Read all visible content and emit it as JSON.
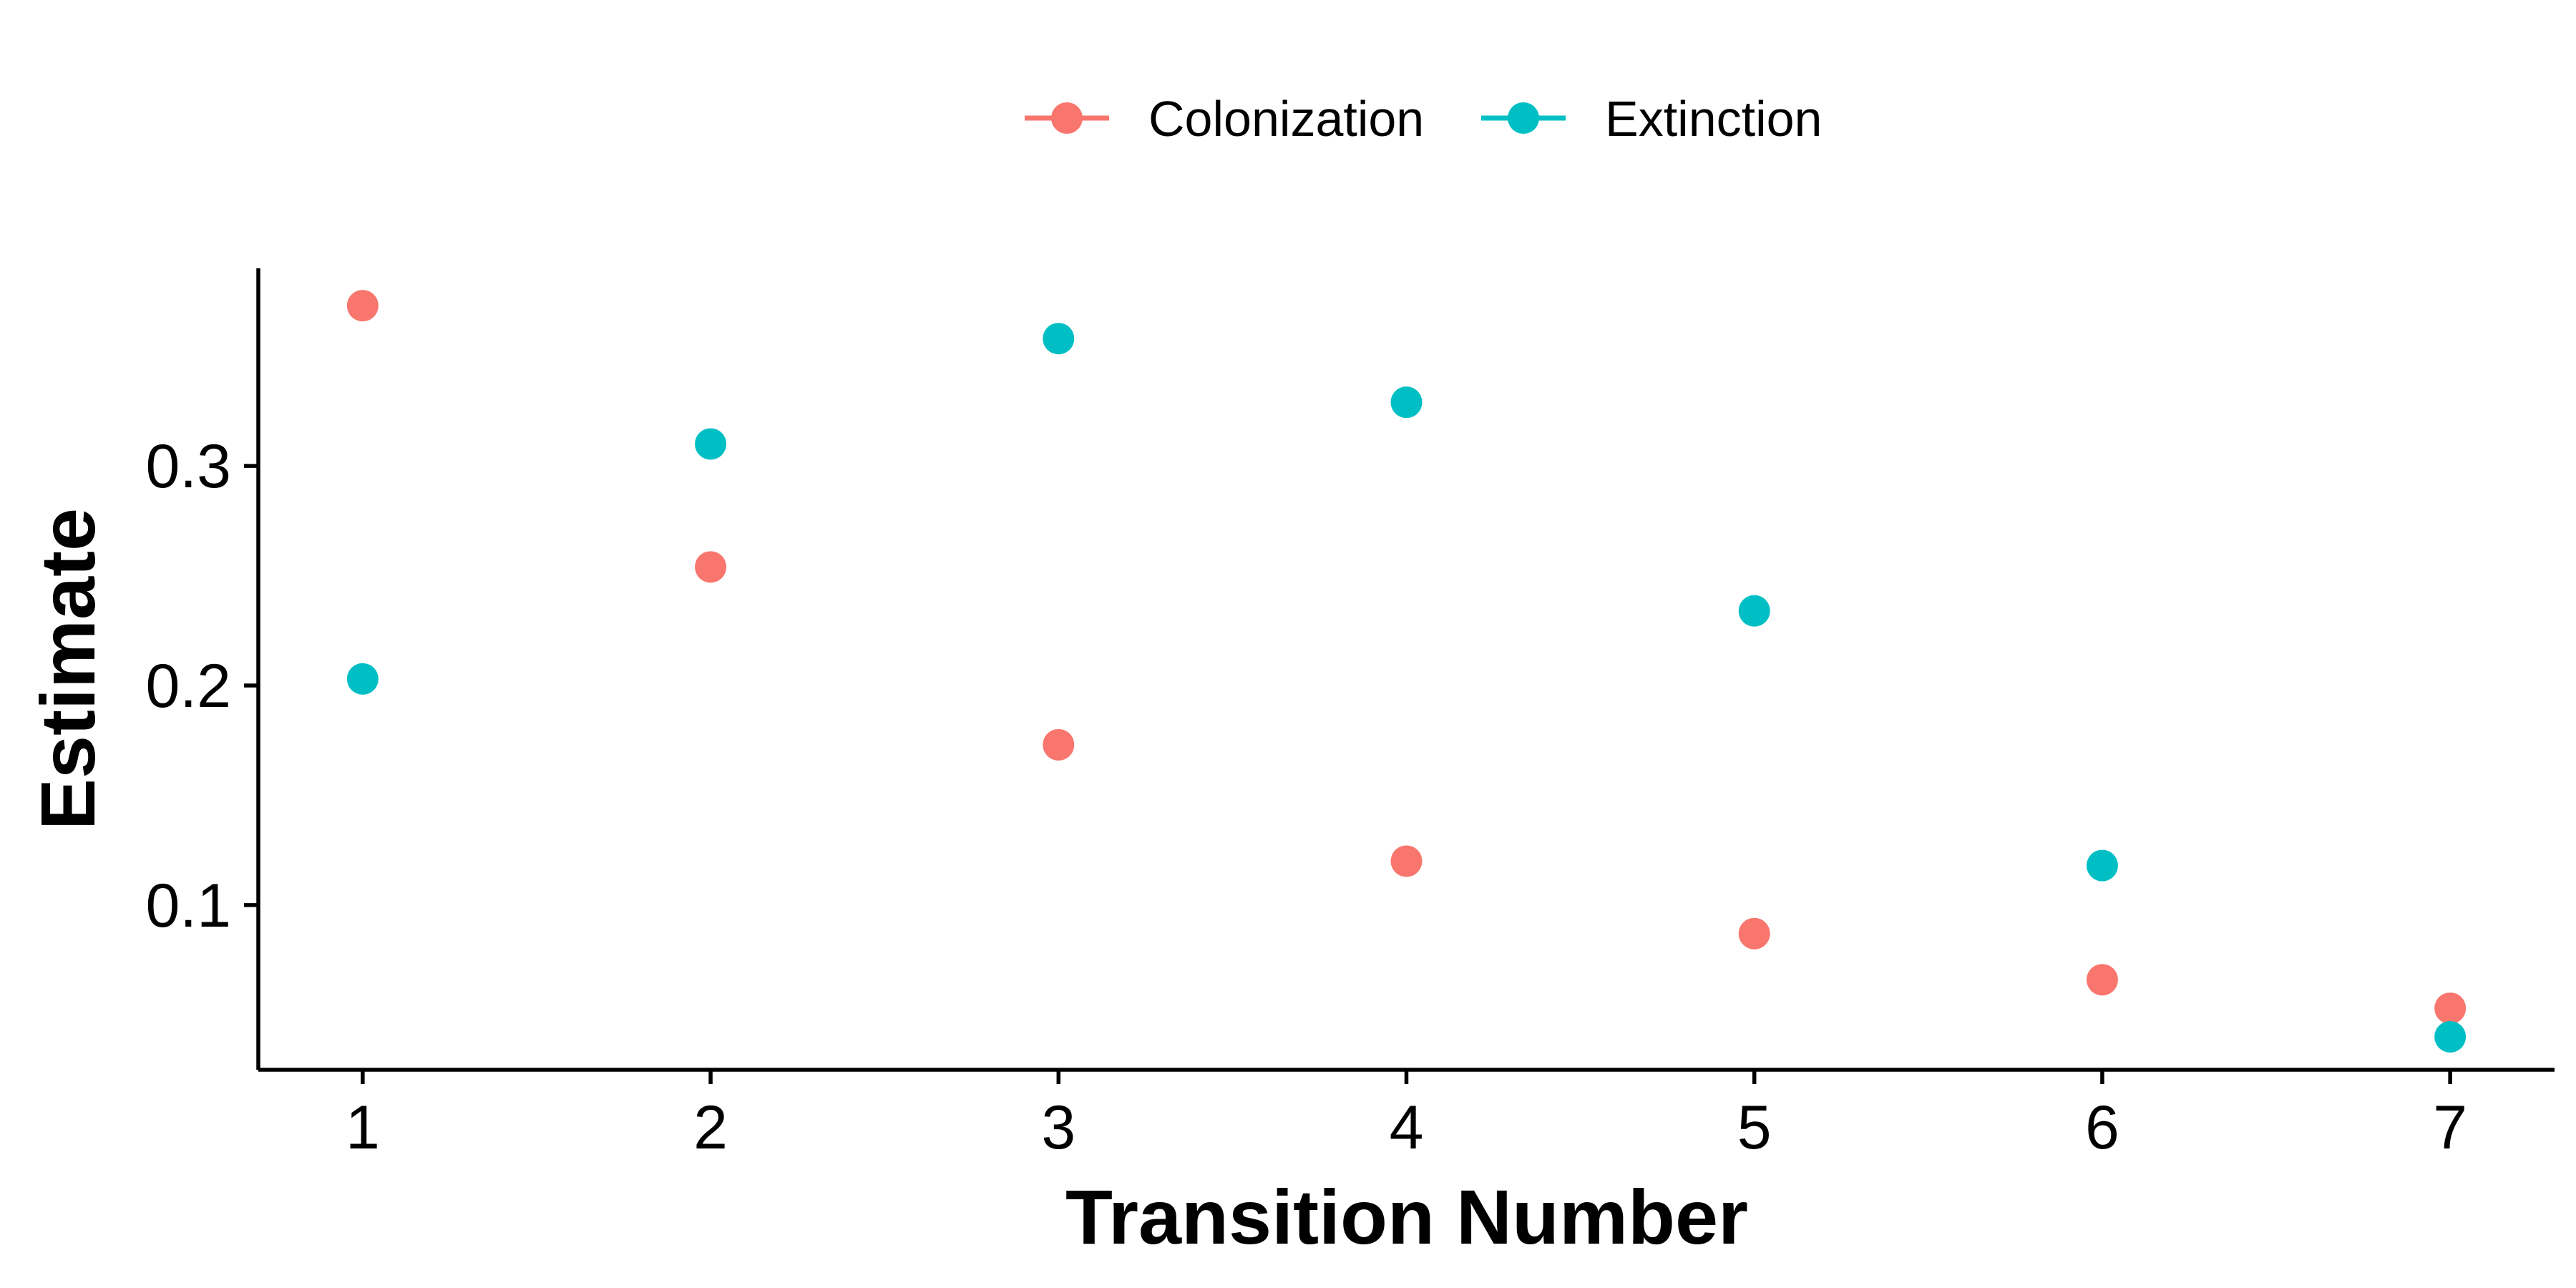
{
  "chart_data": {
    "type": "scatter",
    "title": "",
    "xlabel": "Transition Number",
    "ylabel": "Estimate",
    "x": [
      1,
      2,
      3,
      4,
      5,
      6,
      7
    ],
    "x_ticks": [
      "1",
      "2",
      "3",
      "4",
      "5",
      "6",
      "7"
    ],
    "y_ticks": [
      "0.1",
      "0.2",
      "0.3"
    ],
    "y_tick_values": [
      0.1,
      0.2,
      0.3
    ],
    "xlim": [
      0.7,
      7.3
    ],
    "ylim": [
      0.025,
      0.39
    ],
    "grid": false,
    "legend_position": "top",
    "series": [
      {
        "name": "Colonization",
        "color": "#F8766D",
        "values": [
          0.373,
          0.254,
          0.173,
          0.12,
          0.087,
          0.066,
          0.053
        ]
      },
      {
        "name": "Extinction",
        "color": "#00BFC4",
        "values": [
          0.203,
          0.31,
          0.358,
          0.329,
          0.234,
          0.118,
          0.04
        ]
      }
    ]
  }
}
